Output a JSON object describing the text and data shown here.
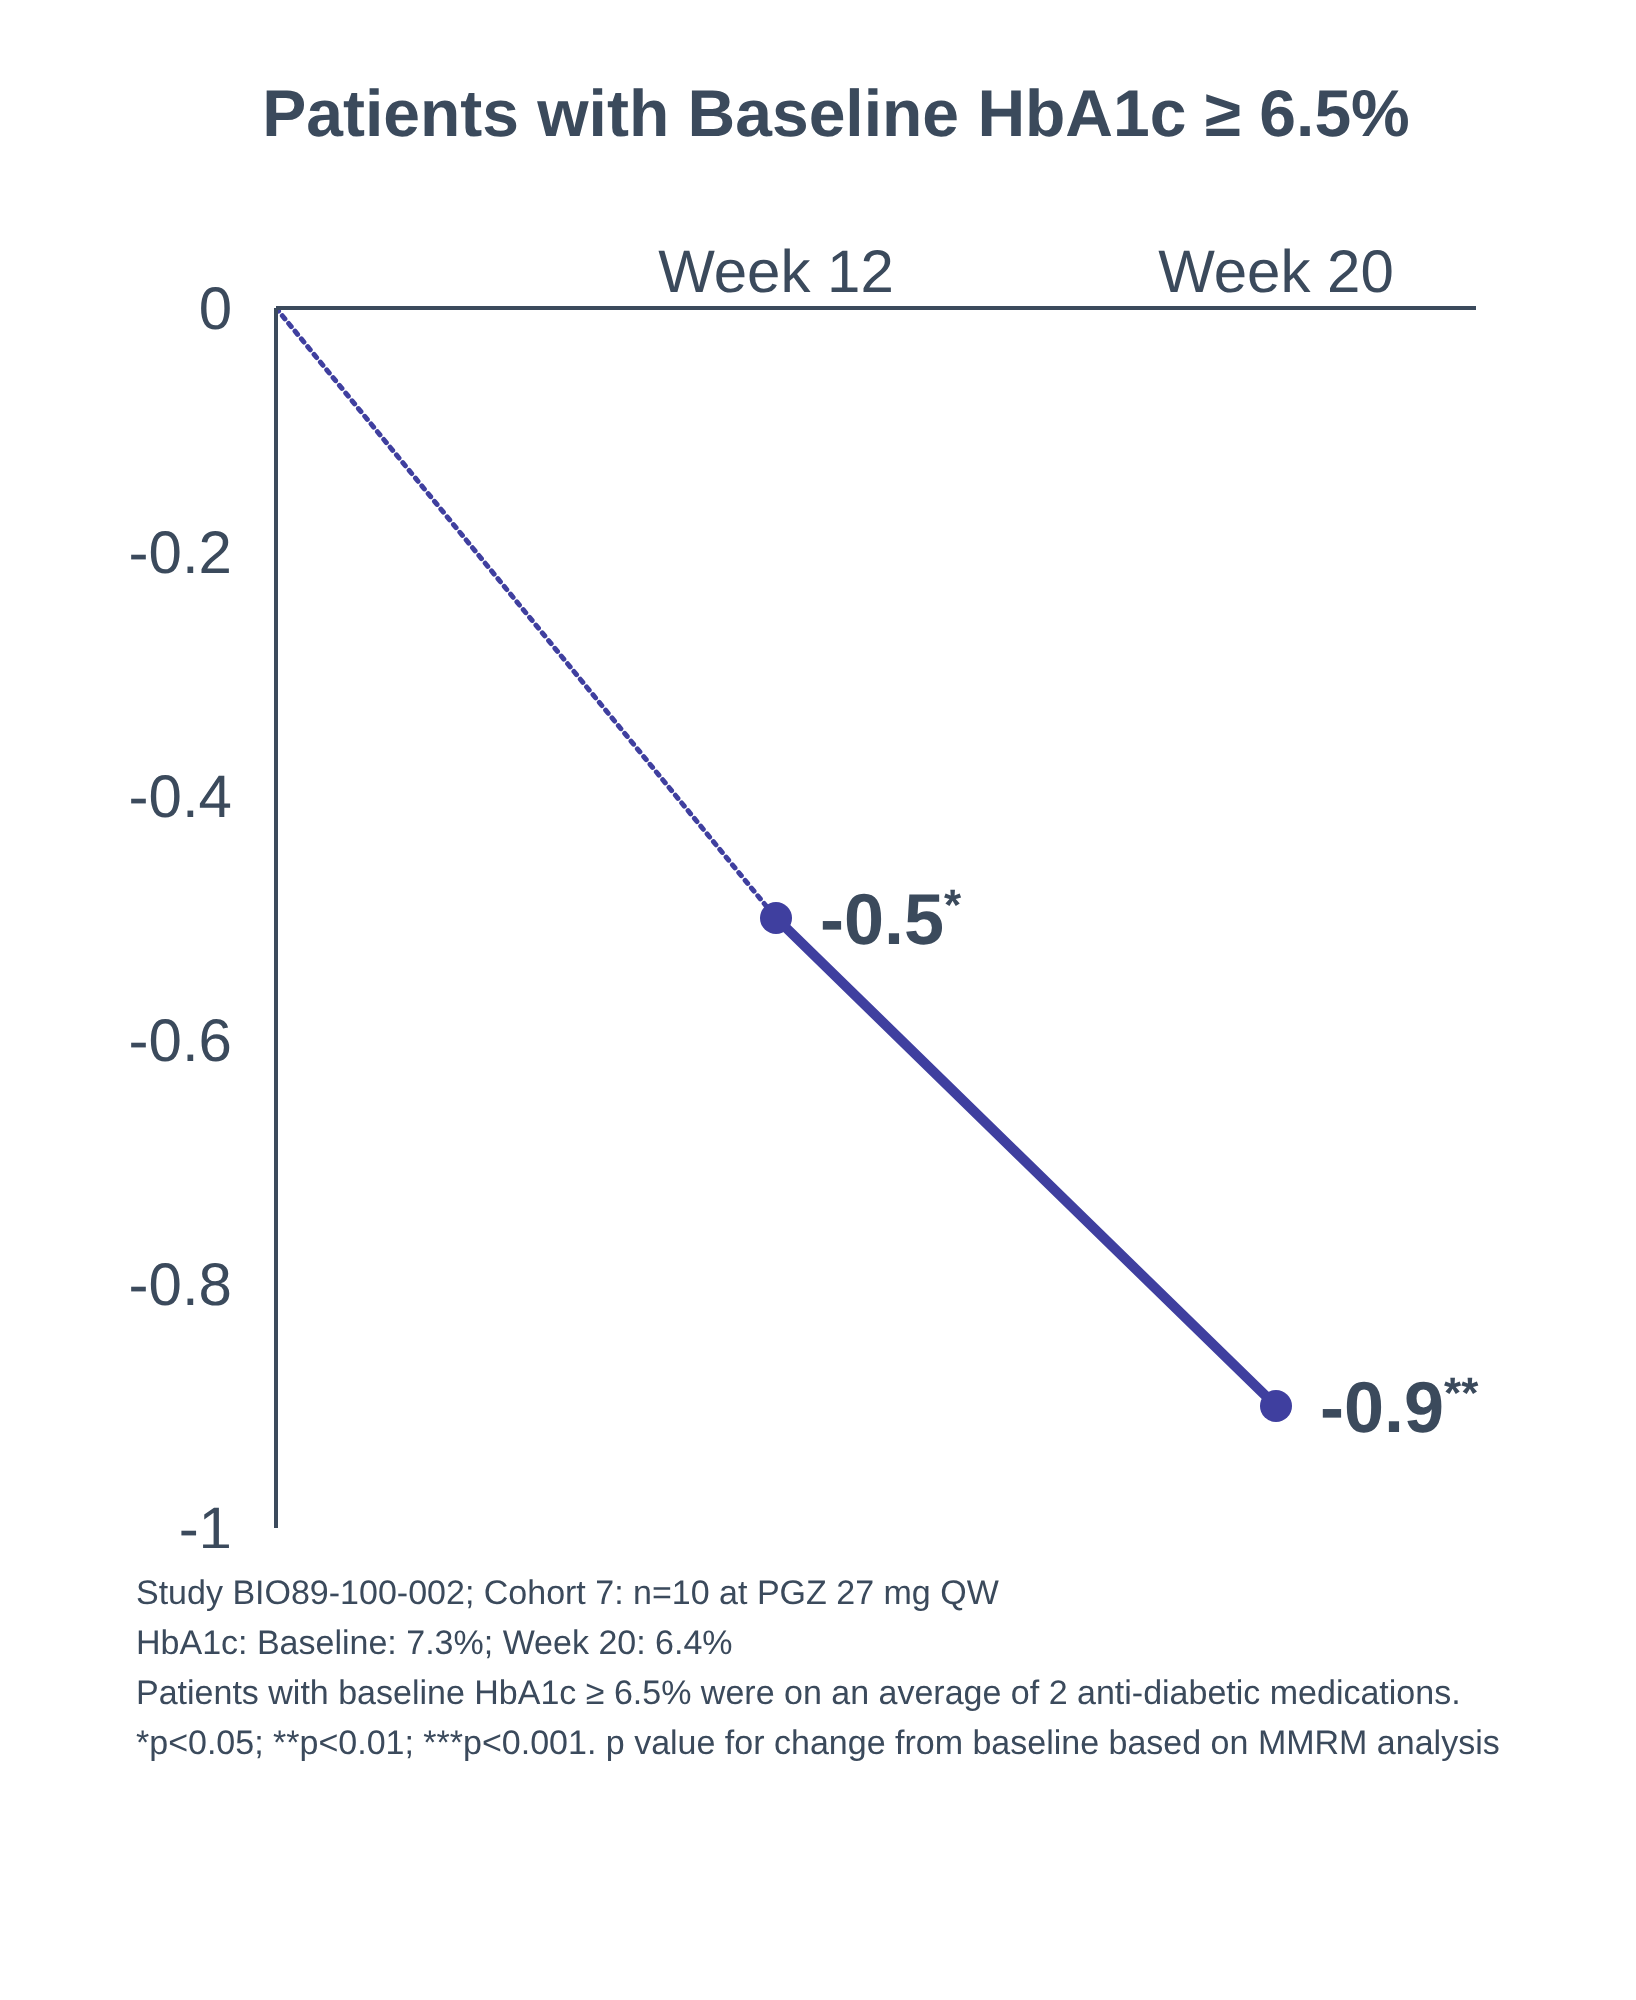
{
  "chart_data": {
    "type": "line",
    "title": "Patients with Baseline HbA1c ≥ 6.5%",
    "categories": [
      null,
      "Week 12",
      "Week 20"
    ],
    "ylim": [
      -1,
      0
    ],
    "yticks": [
      0,
      -0.2,
      -0.4,
      -0.6,
      -0.8,
      -1
    ],
    "series": [
      {
        "color": "#3f3f9f",
        "values": [
          0,
          -0.5,
          null
        ],
        "line_style": "dotted"
      },
      {
        "color": "#3f3f9f",
        "values": [
          null,
          -0.5,
          -0.9
        ],
        "line_style": "solid",
        "marker": "circle",
        "value_labels": [
          null,
          "-0.5$^{*}$",
          "-0.9$^{**}$"
        ]
      }
    ],
    "grid": false,
    "legend": false,
    "annotations": [
      "Study BIO89-100-002; Cohort 7: n=10 at PGZ 27 mg QW",
      "HbA1c: Baseline: 7.3%; Week 20: 6.4%",
      "Patients with baseline HbA1c ≥ 6.5% were on an average of 2 anti-diabetic medications.",
      "*p<0.05; **p<0.01; ***p<0.001. p value for change from baseline based on MMRM analysis"
    ]
  }
}
